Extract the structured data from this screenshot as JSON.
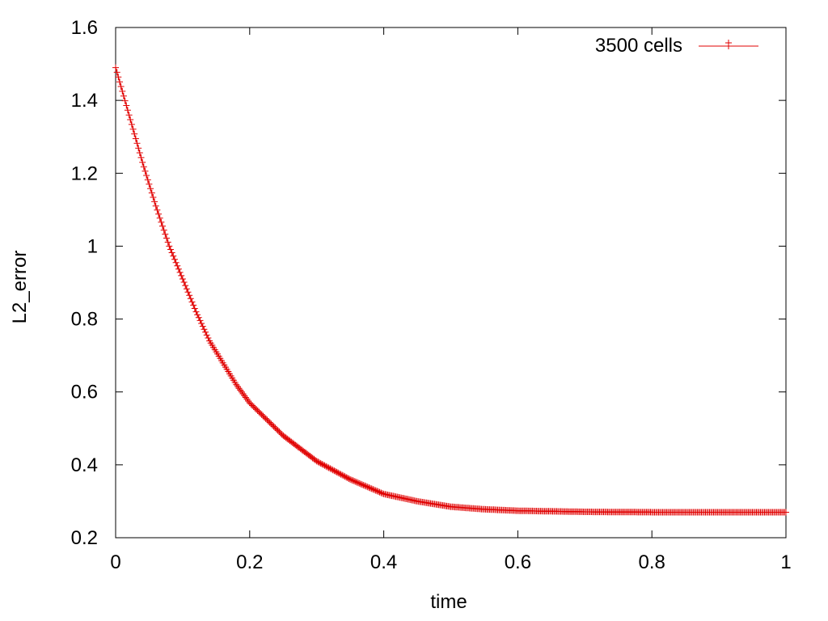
{
  "chart_data": {
    "type": "line",
    "title": "",
    "xlabel": "time",
    "ylabel": "L2_error",
    "xlim": [
      0,
      1
    ],
    "ylim": [
      0.2,
      1.6
    ],
    "x_ticks": [
      "0",
      "0.2",
      "0.4",
      "0.6",
      "0.8",
      "1"
    ],
    "y_ticks": [
      "0.2",
      "0.4",
      "0.6",
      "0.8",
      "1",
      "1.2",
      "1.4",
      "1.6"
    ],
    "grid": false,
    "legend_position": "top-right",
    "series": [
      {
        "name": "3500 cells",
        "color": "#e00000",
        "marker": "plus",
        "x": [
          0,
          0.02,
          0.04,
          0.06,
          0.08,
          0.1,
          0.12,
          0.14,
          0.16,
          0.18,
          0.2,
          0.25,
          0.3,
          0.35,
          0.4,
          0.45,
          0.5,
          0.55,
          0.6,
          0.7,
          0.8,
          0.9,
          1.0
        ],
        "y": [
          1.49,
          1.36,
          1.23,
          1.11,
          1.0,
          0.91,
          0.82,
          0.74,
          0.68,
          0.62,
          0.57,
          0.48,
          0.41,
          0.36,
          0.32,
          0.3,
          0.285,
          0.278,
          0.274,
          0.271,
          0.27,
          0.27,
          0.27
        ]
      }
    ]
  }
}
